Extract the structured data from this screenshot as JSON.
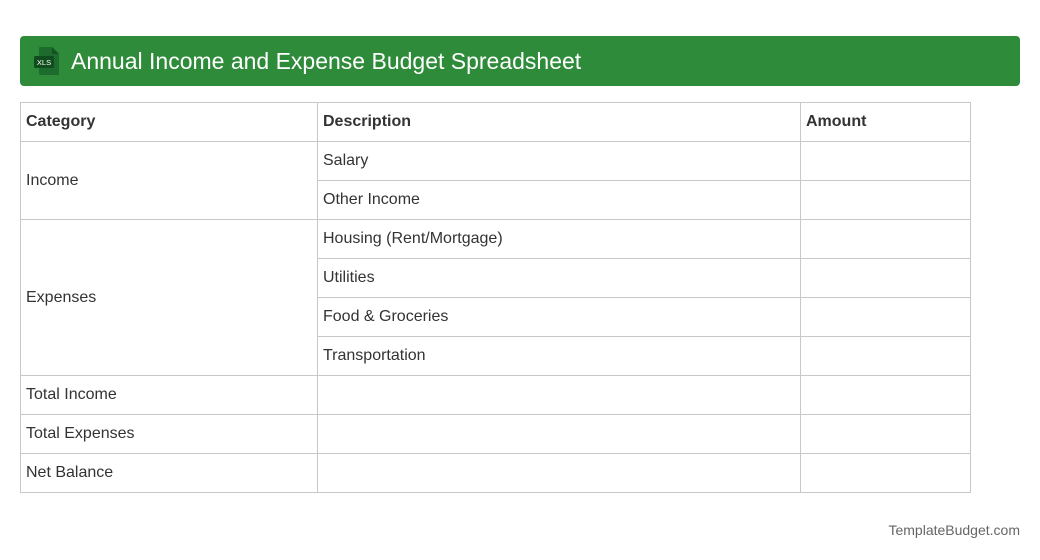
{
  "header": {
    "title": "Annual Income and Expense Budget Spreadsheet",
    "icon_label": "XLS",
    "background_color": "#2e8b3a"
  },
  "table": {
    "columns": [
      "Category",
      "Description",
      "Amount"
    ],
    "groups": [
      {
        "category": "Income",
        "descriptions": [
          "Salary",
          "Other Income"
        ]
      },
      {
        "category": "Expenses",
        "descriptions": [
          "Housing (Rent/Mortgage)",
          "Utilities",
          "Food & Groceries",
          "Transportation"
        ]
      }
    ],
    "summary_rows": [
      "Total Income",
      "Total Expenses",
      "Net Balance"
    ]
  },
  "footer": {
    "brand": "TemplateBudget.com"
  }
}
